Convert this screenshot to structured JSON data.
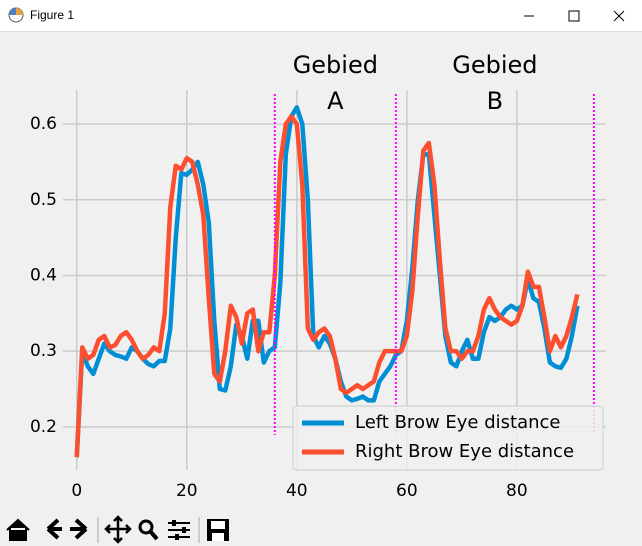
{
  "window": {
    "title": "Figure 1"
  },
  "chart_data": {
    "type": "line",
    "x": [
      0,
      1,
      2,
      3,
      4,
      5,
      6,
      7,
      8,
      9,
      10,
      11,
      12,
      13,
      14,
      15,
      16,
      17,
      18,
      19,
      20,
      21,
      22,
      23,
      24,
      25,
      26,
      27,
      28,
      29,
      30,
      31,
      32,
      33,
      34,
      35,
      36,
      37,
      38,
      39,
      40,
      41,
      42,
      43,
      44,
      45,
      46,
      47,
      48,
      49,
      50,
      51,
      52,
      53,
      54,
      55,
      56,
      57,
      58,
      59,
      60,
      61,
      62,
      63,
      64,
      65,
      66,
      67,
      68,
      69,
      70,
      71,
      72,
      73,
      74,
      75,
      76,
      77,
      78,
      79,
      80,
      81,
      82,
      83,
      84,
      85,
      86,
      87,
      88,
      89,
      90,
      91
    ],
    "series": [
      {
        "name": "Left Brow Eye distance",
        "color": "#008fd5",
        "values": [
          0.16,
          0.3,
          0.28,
          0.27,
          0.29,
          0.31,
          0.3,
          0.295,
          0.293,
          0.29,
          0.305,
          0.3,
          0.29,
          0.283,
          0.28,
          0.287,
          0.287,
          0.33,
          0.45,
          0.535,
          0.533,
          0.54,
          0.55,
          0.52,
          0.47,
          0.34,
          0.25,
          0.248,
          0.28,
          0.335,
          0.32,
          0.29,
          0.34,
          0.34,
          0.285,
          0.3,
          0.305,
          0.39,
          0.56,
          0.61,
          0.622,
          0.6,
          0.5,
          0.32,
          0.305,
          0.32,
          0.31,
          0.29,
          0.26,
          0.24,
          0.235,
          0.237,
          0.24,
          0.235,
          0.235,
          0.26,
          0.27,
          0.28,
          0.295,
          0.3,
          0.34,
          0.41,
          0.5,
          0.56,
          0.56,
          0.48,
          0.4,
          0.32,
          0.285,
          0.28,
          0.3,
          0.315,
          0.29,
          0.29,
          0.325,
          0.345,
          0.34,
          0.345,
          0.355,
          0.36,
          0.355,
          0.36,
          0.395,
          0.37,
          0.365,
          0.33,
          0.285,
          0.28,
          0.278,
          0.29,
          0.32,
          0.36
        ]
      },
      {
        "name": "Right Brow Eye distance",
        "color": "#fc4f30",
        "values": [
          0.16,
          0.305,
          0.29,
          0.295,
          0.315,
          0.32,
          0.305,
          0.308,
          0.32,
          0.325,
          0.315,
          0.3,
          0.29,
          0.295,
          0.305,
          0.3,
          0.35,
          0.49,
          0.545,
          0.54,
          0.555,
          0.55,
          0.52,
          0.48,
          0.37,
          0.27,
          0.26,
          0.3,
          0.36,
          0.345,
          0.31,
          0.35,
          0.355,
          0.3,
          0.325,
          0.325,
          0.4,
          0.55,
          0.6,
          0.61,
          0.6,
          0.52,
          0.33,
          0.315,
          0.325,
          0.33,
          0.32,
          0.29,
          0.25,
          0.245,
          0.25,
          0.255,
          0.25,
          0.255,
          0.26,
          0.285,
          0.3,
          0.3,
          0.3,
          0.3,
          0.32,
          0.38,
          0.48,
          0.565,
          0.575,
          0.52,
          0.42,
          0.33,
          0.3,
          0.3,
          0.29,
          0.3,
          0.3,
          0.32,
          0.355,
          0.37,
          0.355,
          0.345,
          0.34,
          0.335,
          0.34,
          0.36,
          0.405,
          0.385,
          0.385,
          0.345,
          0.3,
          0.32,
          0.305,
          0.32,
          0.345,
          0.375
        ]
      }
    ],
    "xlim": [
      -2.5,
      96.2
    ],
    "ylim": [
      0.143,
      0.645
    ],
    "xticks": [
      0,
      20,
      40,
      60,
      80
    ],
    "yticks": [
      0.2,
      0.3,
      0.4,
      0.5,
      0.6
    ],
    "grid": true,
    "legend": "lower right",
    "vlines": [
      36,
      58,
      94
    ],
    "vline_color": "#ff00ff",
    "annotations": [
      {
        "lines": [
          "Gebied",
          "A"
        ]
      },
      {
        "lines": [
          "Gebied",
          "B"
        ]
      }
    ]
  }
}
